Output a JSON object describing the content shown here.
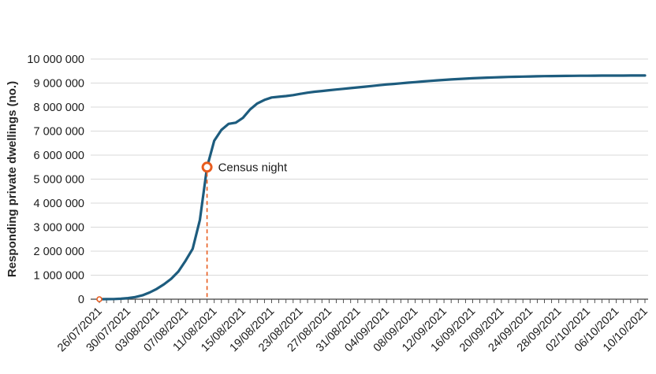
{
  "chart_data": {
    "type": "line",
    "title": "",
    "xlabel": "",
    "ylabel": "Responding private dwellings (no.)",
    "ylim": [
      0,
      10000000
    ],
    "ytick_step": 1000000,
    "ytick_labels": [
      "0",
      "1 000 000",
      "2 000 000",
      "3 000 000",
      "4 000 000",
      "5 000 000",
      "6 000 000",
      "7 000 000",
      "8 000 000",
      "9 000 000",
      "10 000 000"
    ],
    "xtick_every": 4,
    "xtick_labels": [
      "26/07/2021",
      "30/07/2021",
      "03/08/2021",
      "07/08/2021",
      "11/08/2021",
      "15/08/2021",
      "19/08/2021",
      "23/08/2021",
      "27/08/2021",
      "31/08/2021",
      "04/09/2021",
      "08/09/2021",
      "12/09/2021",
      "16/09/2021",
      "20/09/2021",
      "24/09/2021",
      "28/09/2021",
      "02/10/2021",
      "06/10/2021",
      "10/10/2021"
    ],
    "grid": true,
    "legend": "none",
    "colors": {
      "line": "#1d5c7e",
      "annotation": "#e85c1e",
      "grid": "#d9d9d9",
      "axis": "#404040",
      "text": "#1a1a1a"
    },
    "annotation": {
      "label": "Census night",
      "date": "10/08/2021",
      "value": 5500000
    },
    "start_marker": {
      "date": "26/07/2021",
      "value": 0
    },
    "series": [
      {
        "name": "Responding private dwellings",
        "color": "#1d5c7e",
        "dates": [
          "26/07/2021",
          "27/07/2021",
          "28/07/2021",
          "29/07/2021",
          "30/07/2021",
          "31/07/2021",
          "01/08/2021",
          "02/08/2021",
          "03/08/2021",
          "04/08/2021",
          "05/08/2021",
          "06/08/2021",
          "07/08/2021",
          "08/08/2021",
          "09/08/2021",
          "10/08/2021",
          "11/08/2021",
          "12/08/2021",
          "13/08/2021",
          "14/08/2021",
          "15/08/2021",
          "16/08/2021",
          "17/08/2021",
          "18/08/2021",
          "19/08/2021",
          "20/08/2021",
          "21/08/2021",
          "22/08/2021",
          "23/08/2021",
          "24/08/2021",
          "25/08/2021",
          "26/08/2021",
          "27/08/2021",
          "28/08/2021",
          "29/08/2021",
          "30/08/2021",
          "31/08/2021",
          "01/09/2021",
          "02/09/2021",
          "03/09/2021",
          "04/09/2021",
          "05/09/2021",
          "06/09/2021",
          "07/09/2021",
          "08/09/2021",
          "09/09/2021",
          "10/09/2021",
          "11/09/2021",
          "12/09/2021",
          "13/09/2021",
          "14/09/2021",
          "15/09/2021",
          "16/09/2021",
          "17/09/2021",
          "18/09/2021",
          "19/09/2021",
          "20/09/2021",
          "21/09/2021",
          "22/09/2021",
          "23/09/2021",
          "24/09/2021",
          "25/09/2021",
          "26/09/2021",
          "27/09/2021",
          "28/09/2021",
          "29/09/2021",
          "30/09/2021",
          "01/10/2021",
          "02/10/2021",
          "03/10/2021",
          "04/10/2021",
          "05/10/2021",
          "06/10/2021",
          "07/10/2021",
          "08/10/2021",
          "09/10/2021",
          "10/10/2021"
        ],
        "values": [
          0,
          2000,
          8000,
          20000,
          45000,
          90000,
          160000,
          280000,
          430000,
          620000,
          850000,
          1150000,
          1600000,
          2100000,
          3300000,
          5500000,
          6600000,
          7050000,
          7300000,
          7350000,
          7550000,
          7900000,
          8150000,
          8300000,
          8400000,
          8430000,
          8460000,
          8500000,
          8550000,
          8600000,
          8640000,
          8670000,
          8700000,
          8730000,
          8760000,
          8790000,
          8820000,
          8850000,
          8880000,
          8910000,
          8940000,
          8965000,
          8990000,
          9015000,
          9040000,
          9065000,
          9090000,
          9110000,
          9130000,
          9150000,
          9168000,
          9185000,
          9200000,
          9213000,
          9225000,
          9236000,
          9246000,
          9255000,
          9263000,
          9270000,
          9276000,
          9282000,
          9287000,
          9291000,
          9295000,
          9298000,
          9301000,
          9304000,
          9306000,
          9308000,
          9310000,
          9311000,
          9312000,
          9313000,
          9314000,
          9315000,
          9316000
        ]
      }
    ]
  }
}
